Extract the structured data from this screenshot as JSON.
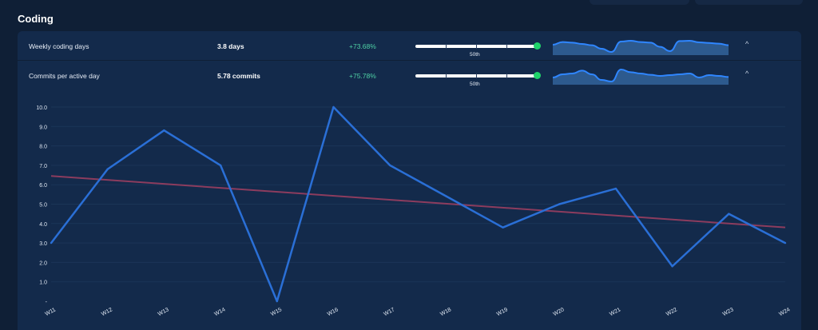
{
  "section": {
    "title": "Coding"
  },
  "metrics": [
    {
      "label": "Weekly coding days",
      "value": "3.8 days",
      "change": "+73.68%",
      "percentile_label": "50th",
      "spark": [
        0.55,
        0.72,
        0.68,
        0.6,
        0.52,
        0.3,
        0.1,
        0.75,
        0.8,
        0.72,
        0.68,
        0.42,
        0.15,
        0.78,
        0.8,
        0.7,
        0.66,
        0.62,
        0.52
      ]
    },
    {
      "label": "Commits per active day",
      "value": "5.78 commits",
      "change": "+75.78%",
      "percentile_label": "50th",
      "spark": [
        0.35,
        0.55,
        0.6,
        0.78,
        0.55,
        0.2,
        0.1,
        0.85,
        0.68,
        0.6,
        0.52,
        0.45,
        0.5,
        0.55,
        0.6,
        0.35,
        0.5,
        0.45,
        0.38
      ]
    }
  ],
  "colors": {
    "background": "#0f1f36",
    "panel": "#132a4b",
    "line": "#2a6fd6",
    "trend": "#8c3c5e",
    "positive": "#4fd1a5",
    "marker": "#1fd36a",
    "spark_line": "#2f86ff",
    "spark_fill": "#2d5a8e"
  },
  "icons": {
    "expand": "chevron-up-icon"
  },
  "chevron_glyph": "^",
  "chart_data": {
    "type": "line",
    "categories": [
      "W11",
      "W12",
      "W13",
      "W14",
      "W15",
      "W16",
      "W17",
      "W18",
      "W19",
      "W20",
      "W21",
      "W22",
      "W23",
      "W24"
    ],
    "series": [
      {
        "values": [
          3.0,
          6.8,
          8.8,
          7.0,
          0.0,
          10.0,
          7.0,
          5.4,
          3.8,
          5.0,
          5.8,
          1.8,
          4.5,
          3.0
        ]
      }
    ],
    "trend": {
      "start": 6.45,
      "end": 3.8
    },
    "y_ticks": [
      "-",
      "1.0",
      "2.0",
      "3.0",
      "4.0",
      "5.0",
      "6.0",
      "7.0",
      "8.0",
      "9.0",
      "10.0"
    ],
    "ylim": [
      0,
      10
    ],
    "grid": true,
    "legend": "none"
  }
}
